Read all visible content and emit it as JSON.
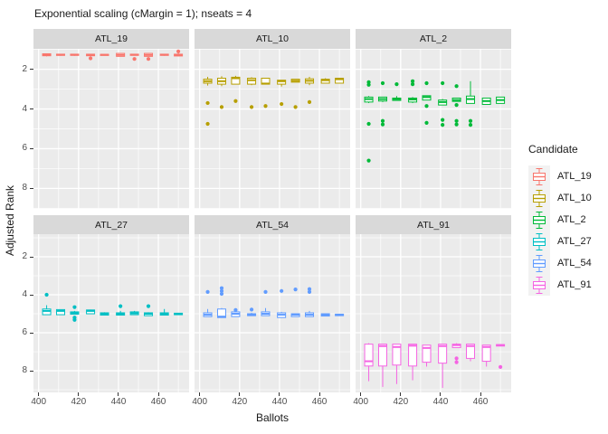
{
  "chart_data": {
    "type": "boxplot",
    "title": "Exponential scaling (cMargin = 1); nseats = 4",
    "xlabel": "Ballots",
    "ylabel": "Adjusted Rank",
    "x_axis": {
      "ticks": [
        400,
        420,
        440,
        460
      ],
      "minor": [
        410,
        430,
        450,
        470
      ],
      "range": [
        397.4,
        475.4
      ]
    },
    "y_axis": {
      "ticks": [
        2,
        4,
        6,
        8
      ],
      "minor": [
        1,
        3,
        5,
        7,
        9
      ],
      "reversed": true,
      "range_top_row": [
        0.97,
        9.03
      ],
      "range_bottom_row": [
        0.81,
        9.14
      ]
    },
    "colors": {
      "panel": "#EBEBEB",
      "strip": "#D9D9D9",
      "gridline": "#FFFFFF",
      "tick_label": "#4D4D4D",
      "text": "#1A1A1A",
      "legend_key_bg": "#F2F2F2"
    },
    "legend": {
      "title": "Candidate",
      "items": [
        {
          "label": "ATL_19",
          "color": "#F8766D"
        },
        {
          "label": "ATL_10",
          "color": "#B79F00"
        },
        {
          "label": "ATL_2",
          "color": "#00BA38"
        },
        {
          "label": "ATL_27",
          "color": "#00BFC4"
        },
        {
          "label": "ATL_54",
          "color": "#619CFF"
        },
        {
          "label": "ATL_91",
          "color": "#F564E3"
        }
      ]
    },
    "box_format": "[ballots_x, whisker_min_rank, box_min_rank, median_rank, box_max_rank, whisker_max_rank, outlier_ranks[]]",
    "facets": [
      {
        "label": "ATL_19",
        "color": "#F8766D",
        "boxes": [
          [
            404,
            1.2,
            1.22,
            1.27,
            1.32,
            1.35,
            []
          ],
          [
            411,
            1.22,
            1.24,
            1.27,
            1.3,
            1.32,
            []
          ],
          [
            418,
            1.22,
            1.24,
            1.27,
            1.3,
            1.32,
            []
          ],
          [
            426,
            1.22,
            1.24,
            1.27,
            1.32,
            1.35,
            [
              1.45
            ]
          ],
          [
            433,
            1.25,
            1.25,
            1.27,
            1.3,
            1.3,
            []
          ],
          [
            441,
            1.2,
            1.2,
            1.28,
            1.35,
            1.35,
            []
          ],
          [
            448,
            1.24,
            1.24,
            1.27,
            1.3,
            1.3,
            [
              1.48
            ]
          ],
          [
            455,
            1.2,
            1.2,
            1.28,
            1.35,
            1.35,
            [
              1.48
            ]
          ],
          [
            463,
            1.22,
            1.24,
            1.27,
            1.3,
            1.32,
            []
          ],
          [
            470,
            1.2,
            1.24,
            1.28,
            1.33,
            1.35,
            [
              1.1
            ]
          ]
        ]
      },
      {
        "label": "ATL_10",
        "color": "#B79F00",
        "boxes": [
          [
            404,
            2.38,
            2.5,
            2.6,
            2.7,
            2.82,
            [
              3.7,
              4.75
            ]
          ],
          [
            411,
            2.35,
            2.45,
            2.6,
            2.75,
            2.85,
            [
              3.9
            ]
          ],
          [
            418,
            2.33,
            2.4,
            2.45,
            2.75,
            2.75,
            [
              3.6
            ]
          ],
          [
            426,
            2.4,
            2.45,
            2.55,
            2.75,
            2.8,
            [
              3.9
            ]
          ],
          [
            433,
            2.45,
            2.45,
            2.72,
            2.75,
            2.75,
            [
              3.85
            ]
          ],
          [
            441,
            2.55,
            2.55,
            2.6,
            2.75,
            2.87,
            [
              3.75
            ]
          ],
          [
            448,
            2.5,
            2.5,
            2.58,
            2.65,
            2.65,
            [
              3.9
            ]
          ],
          [
            455,
            2.38,
            2.48,
            2.58,
            2.7,
            2.8,
            [
              3.65
            ]
          ],
          [
            463,
            2.45,
            2.5,
            2.55,
            2.7,
            2.7,
            []
          ],
          [
            470,
            2.45,
            2.45,
            2.5,
            2.7,
            2.7,
            []
          ]
        ]
      },
      {
        "label": "ATL_2",
        "color": "#00BA38",
        "boxes": [
          [
            404,
            3.35,
            3.4,
            3.5,
            3.65,
            3.7,
            [
              2.65,
              2.78,
              4.75,
              6.6
            ]
          ],
          [
            411,
            3.4,
            3.4,
            3.5,
            3.6,
            3.65,
            [
              2.7,
              4.6,
              4.78
            ]
          ],
          [
            418,
            3.35,
            3.45,
            3.5,
            3.57,
            3.57,
            [
              2.75
            ]
          ],
          [
            426,
            3.4,
            3.45,
            3.52,
            3.65,
            3.7,
            [
              2.6,
              2.75
            ]
          ],
          [
            433,
            3.33,
            3.33,
            3.4,
            3.55,
            3.55,
            [
              2.7,
              3.85,
              4.7
            ]
          ],
          [
            441,
            3.5,
            3.55,
            3.65,
            3.8,
            3.8,
            [
              2.7,
              4.55,
              4.8
            ]
          ],
          [
            448,
            3.45,
            3.45,
            3.55,
            3.62,
            3.62,
            [
              2.85,
              3.8,
              4.6,
              4.78
            ]
          ],
          [
            455,
            2.6,
            3.35,
            3.5,
            3.72,
            3.72,
            [
              4.6,
              4.8
            ]
          ],
          [
            463,
            3.45,
            3.45,
            3.6,
            3.77,
            3.77,
            []
          ],
          [
            470,
            3.4,
            3.4,
            3.55,
            3.72,
            3.72,
            []
          ]
        ]
      },
      {
        "label": "ATL_27",
        "color": "#00BFC4",
        "boxes": [
          [
            404,
            4.55,
            4.75,
            4.85,
            5.05,
            5.05,
            [
              4.0
            ]
          ],
          [
            411,
            4.78,
            4.78,
            4.85,
            5.05,
            5.05,
            []
          ],
          [
            418,
            4.85,
            4.9,
            4.95,
            5.02,
            5.02,
            [
              4.65,
              5.2,
              5.32
            ]
          ],
          [
            426,
            4.78,
            4.8,
            4.85,
            5.0,
            5.0,
            []
          ],
          [
            433,
            4.92,
            4.95,
            5.0,
            5.07,
            5.07,
            []
          ],
          [
            441,
            4.85,
            4.95,
            5.0,
            5.07,
            5.07,
            [
              4.6
            ]
          ],
          [
            448,
            4.85,
            4.9,
            4.97,
            5.05,
            5.05,
            []
          ],
          [
            455,
            4.92,
            4.95,
            5.0,
            5.1,
            5.1,
            [
              4.6
            ]
          ],
          [
            463,
            4.75,
            4.95,
            5.0,
            5.07,
            5.07,
            []
          ],
          [
            470,
            4.95,
            4.97,
            5.0,
            5.05,
            5.05,
            []
          ]
        ]
      },
      {
        "label": "ATL_54",
        "color": "#619CFF",
        "boxes": [
          [
            404,
            4.75,
            4.95,
            5.05,
            5.15,
            5.15,
            [
              3.85
            ]
          ],
          [
            411,
            4.7,
            4.75,
            5.15,
            5.2,
            5.2,
            [
              3.65,
              3.8,
              3.95
            ]
          ],
          [
            418,
            4.85,
            4.9,
            5.0,
            5.15,
            5.15,
            [
              4.8
            ]
          ],
          [
            426,
            4.95,
            5.0,
            5.05,
            5.1,
            5.1,
            [
              4.78
            ]
          ],
          [
            433,
            4.7,
            4.9,
            5.0,
            5.1,
            5.1,
            [
              3.85
            ]
          ],
          [
            441,
            4.9,
            4.95,
            5.05,
            5.2,
            5.2,
            [
              3.8
            ]
          ],
          [
            448,
            5.0,
            5.0,
            5.05,
            5.15,
            5.15,
            [
              3.72
            ]
          ],
          [
            455,
            4.85,
            4.95,
            5.05,
            5.15,
            5.15,
            [
              3.7,
              3.85
            ]
          ],
          [
            463,
            5.0,
            5.0,
            5.05,
            5.12,
            5.12,
            []
          ],
          [
            470,
            5.0,
            5.02,
            5.05,
            5.1,
            5.1,
            []
          ]
        ]
      },
      {
        "label": "ATL_91",
        "color": "#F564E3",
        "boxes": [
          [
            404,
            6.55,
            6.6,
            7.5,
            7.75,
            8.55,
            []
          ],
          [
            411,
            6.6,
            6.6,
            6.7,
            7.75,
            8.85,
            []
          ],
          [
            418,
            6.6,
            6.6,
            6.75,
            7.7,
            8.7,
            []
          ],
          [
            426,
            6.6,
            6.6,
            6.68,
            7.75,
            8.5,
            []
          ],
          [
            433,
            6.65,
            6.65,
            6.8,
            7.55,
            7.78,
            []
          ],
          [
            441,
            6.6,
            6.6,
            6.7,
            7.6,
            8.9,
            []
          ],
          [
            448,
            6.55,
            6.6,
            6.65,
            6.78,
            6.78,
            [
              7.35,
              7.55
            ]
          ],
          [
            455,
            6.6,
            6.6,
            6.7,
            7.35,
            7.5,
            []
          ],
          [
            463,
            6.65,
            6.65,
            6.75,
            7.5,
            7.78,
            []
          ],
          [
            470,
            6.6,
            6.62,
            6.65,
            6.7,
            6.7,
            [
              7.8
            ]
          ]
        ]
      }
    ]
  }
}
